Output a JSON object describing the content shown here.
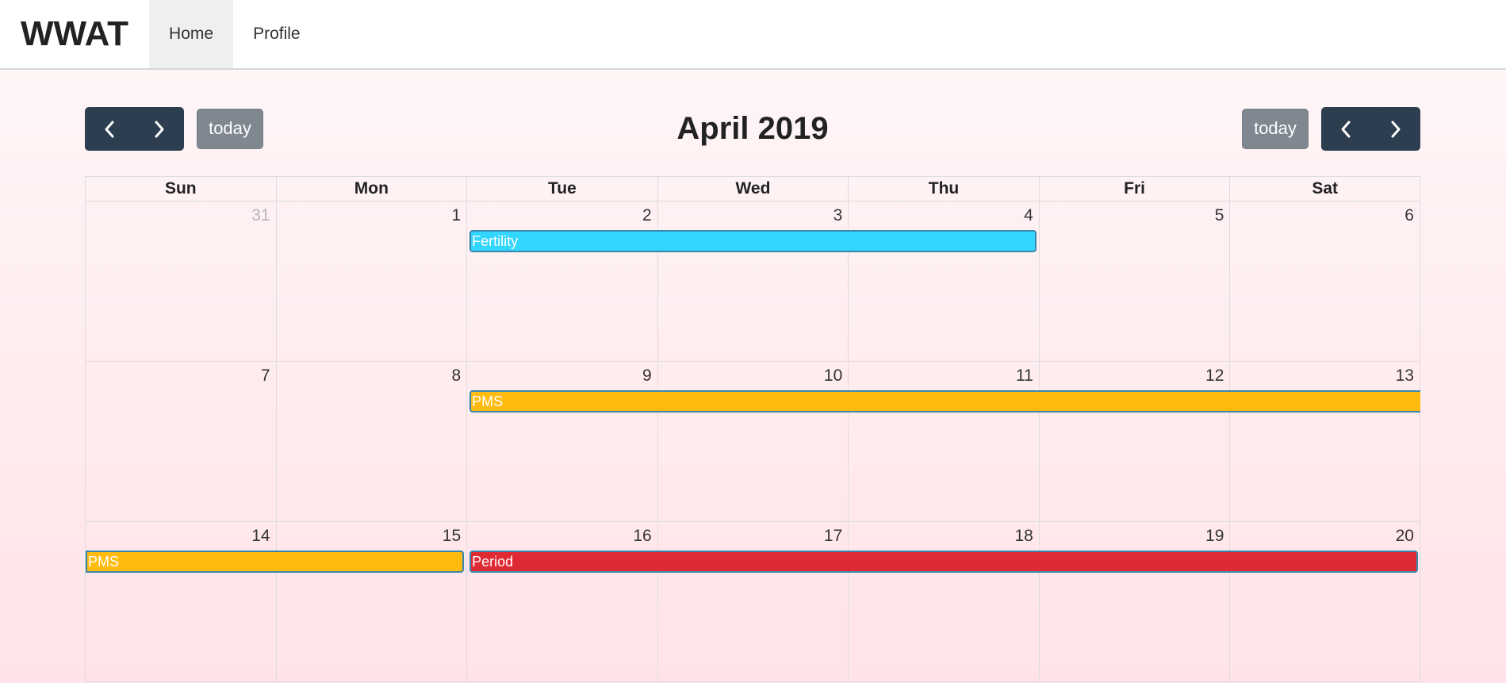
{
  "navbar": {
    "brand": "WWAT",
    "links": [
      {
        "label": "Home",
        "active": true
      },
      {
        "label": "Profile",
        "active": false
      }
    ]
  },
  "toolbar": {
    "title": "April 2019",
    "today_label": "today",
    "prev_icon": "chevron-left-icon",
    "next_icon": "chevron-right-icon"
  },
  "calendar": {
    "weekdays": [
      "Sun",
      "Mon",
      "Tue",
      "Wed",
      "Thu",
      "Fri",
      "Sat"
    ],
    "weeks": [
      {
        "days": [
          {
            "num": "31",
            "other_month": true
          },
          {
            "num": "1"
          },
          {
            "num": "2"
          },
          {
            "num": "3"
          },
          {
            "num": "4"
          },
          {
            "num": "5"
          },
          {
            "num": "6"
          }
        ]
      },
      {
        "days": [
          {
            "num": "7"
          },
          {
            "num": "8"
          },
          {
            "num": "9"
          },
          {
            "num": "10"
          },
          {
            "num": "11"
          },
          {
            "num": "12"
          },
          {
            "num": "13"
          }
        ]
      },
      {
        "days": [
          {
            "num": "14"
          },
          {
            "num": "15"
          },
          {
            "num": "16"
          },
          {
            "num": "17"
          },
          {
            "num": "18"
          },
          {
            "num": "19"
          },
          {
            "num": "20"
          }
        ]
      }
    ],
    "events": [
      {
        "title": "Fertility",
        "color": "#33d6ff",
        "week": 0,
        "start_day": 2,
        "end_day": 4,
        "continues": false,
        "continued": false
      },
      {
        "title": "PMS",
        "color": "#ffbb0f",
        "week": 1,
        "start_day": 2,
        "end_day": 6,
        "continues": true,
        "continued": false
      },
      {
        "title": "PMS",
        "color": "#ffbb0f",
        "week": 2,
        "start_day": 0,
        "end_day": 1,
        "continues": false,
        "continued": true
      },
      {
        "title": "Period",
        "color": "#e02a33",
        "week": 2,
        "start_day": 2,
        "end_day": 6,
        "continues": false,
        "continued": false
      }
    ]
  }
}
